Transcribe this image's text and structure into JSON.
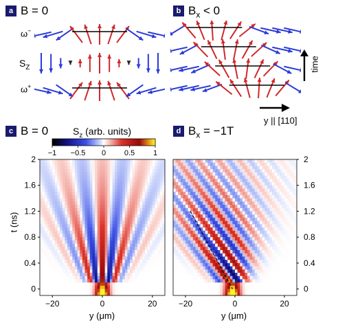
{
  "panels": {
    "a": {
      "badge": "a",
      "title": "B = 0",
      "row_top": "ω",
      "row_top_sup": "−",
      "row_mid": "S",
      "row_mid_sub": "Z",
      "row_bot": "ω",
      "row_bot_sup": "+"
    },
    "b": {
      "badge": "b",
      "title_main": "B",
      "title_sub": "x",
      "title_rest": " < 0",
      "time_label": "time",
      "axis_label": "y || [110]"
    },
    "c": {
      "badge": "c",
      "title": "B = 0",
      "xlabel": "y (μm)",
      "ylabel": "t (ns)"
    },
    "d": {
      "badge": "d",
      "title_main": "B",
      "title_sub": "x",
      "title_rest": " = −1T",
      "xlabel": "y (μm)"
    }
  },
  "colorbar": {
    "label_main": "S",
    "label_sub": "z",
    "label_rest": " (arb. units)",
    "ticks": [
      "−1",
      "−0.5",
      "0",
      "0.5",
      "1"
    ],
    "range": [
      -1,
      1
    ]
  },
  "chart_data": [
    {
      "type": "heatmap",
      "panel": "c",
      "title": "B = 0",
      "xlabel": "y (μm)",
      "ylabel": "t (ns)",
      "xlim": [
        -25,
        25
      ],
      "ylim": [
        -0.1,
        2.0
      ],
      "xticks": [
        "−20",
        "0",
        "20"
      ],
      "yticks": [
        "0",
        "0.4",
        "0.8",
        "1.2",
        "1.6",
        "2"
      ],
      "colormap": "blue-white-red-yellow",
      "description_values": {
        "peak_t": 0.0,
        "peak_y": 0,
        "peak_value": 1.0
      }
    },
    {
      "type": "heatmap",
      "panel": "d",
      "title": "Bx = −1T",
      "xlabel": "y (μm)",
      "ylabel": "t (ns)",
      "xlim": [
        -25,
        25
      ],
      "ylim": [
        -0.1,
        2.0
      ],
      "xticks": [
        "−20",
        "0",
        "20"
      ],
      "yticks": [
        "0",
        "0.4",
        "0.8",
        "1.2",
        "1.6",
        "2"
      ],
      "colormap": "blue-white-red-yellow",
      "dashed_line": {
        "x": [
          -18,
          -1
        ],
        "y": [
          1.2,
          0.0
        ]
      }
    }
  ],
  "colors": {
    "red": "#d0282a",
    "blue": "#2a3ad6",
    "black": "#000000",
    "badge": "#1a1a6e"
  }
}
